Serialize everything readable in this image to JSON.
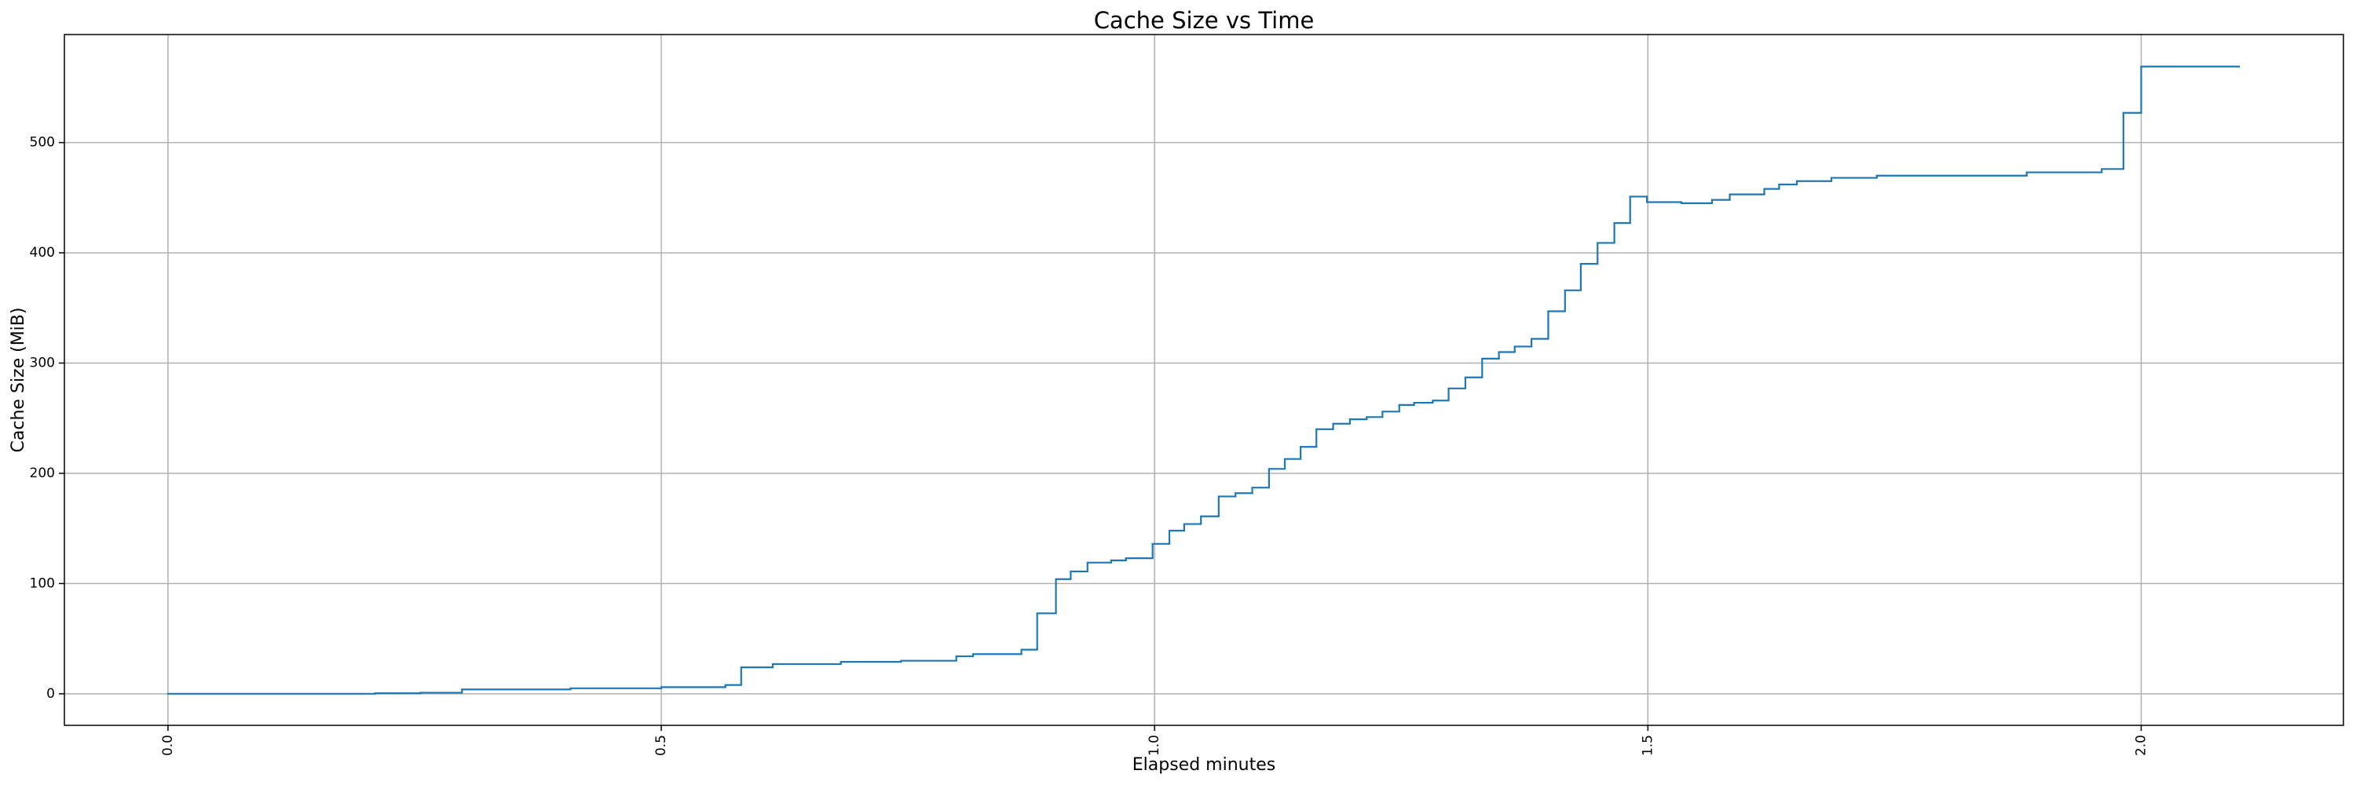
{
  "chart_data": {
    "type": "line",
    "drawstyle": "steps-post",
    "title": "Cache Size vs Time",
    "x_label": "Elapsed minutes",
    "y_label": "Cache Size (MiB)",
    "color": "#1f77b4",
    "grid": true,
    "xlim": [
      -0.105,
      2.205
    ],
    "ylim": [
      -28.6,
      598
    ],
    "xticks": [
      {
        "value": 0,
        "label": "0.0"
      },
      0.5,
      {
        "value": 1,
        "label": "1.0"
      },
      1.5,
      {
        "value": 2,
        "label": "2.0"
      }
    ],
    "yticks": [
      0,
      100,
      200,
      300,
      400,
      500
    ],
    "x": [
      0,
      0.21,
      0.256,
      0.298,
      0.408,
      0.5,
      0.565,
      0.581,
      0.613,
      0.682,
      0.743,
      0.799,
      0.816,
      0.865,
      0.881,
      0.9,
      0.915,
      0.932,
      0.956,
      0.971,
      0.998,
      1.015,
      1.03,
      1.047,
      1.065,
      1.082,
      1.099,
      1.116,
      1.132,
      1.148,
      1.164,
      1.181,
      1.198,
      1.215,
      1.231,
      1.248,
      1.263,
      1.282,
      1.298,
      1.315,
      1.332,
      1.349,
      1.365,
      1.382,
      1.399,
      1.416,
      1.432,
      1.449,
      1.466,
      1.482,
      1.499,
      1.534,
      1.565,
      1.583,
      1.618,
      1.633,
      1.651,
      1.686,
      1.732,
      1.884,
      1.96,
      1.982,
      2.0,
      2.099
    ],
    "values": [
      0,
      0.5,
      1,
      4,
      5,
      6,
      8,
      24,
      27,
      29,
      30,
      34,
      36,
      40,
      73,
      104,
      111,
      119,
      121,
      123,
      136,
      148,
      154,
      161,
      179,
      182,
      187,
      204,
      213,
      224,
      240,
      245,
      249,
      251,
      256,
      262,
      264,
      266,
      277,
      287,
      304,
      310,
      315,
      322,
      347,
      366,
      390,
      409,
      427,
      451,
      446,
      445,
      448,
      453,
      458,
      462,
      465,
      468,
      470,
      473,
      476,
      527,
      569,
      569
    ]
  }
}
